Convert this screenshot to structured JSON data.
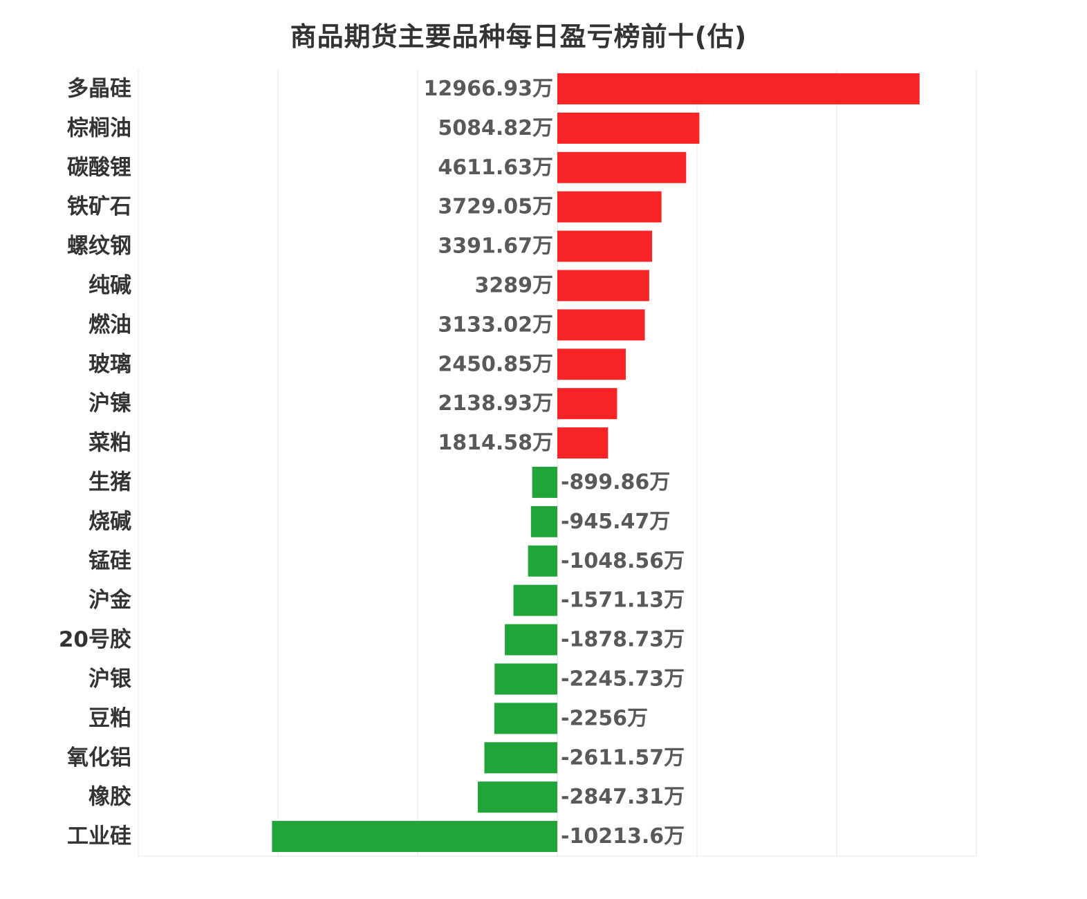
{
  "chart_data": {
    "type": "bar",
    "orientation": "horizontal",
    "title": "商品期货主要品种每日盈亏榜前十(估)",
    "unit": "万",
    "categories": [
      "多晶硅",
      "棕榈油",
      "碳酸锂",
      "铁矿石",
      "螺纹钢",
      "纯碱",
      "燃油",
      "玻璃",
      "沪镍",
      "菜粕",
      "生猪",
      "烧碱",
      "锰硅",
      "沪金",
      "20号胶",
      "沪银",
      "豆粕",
      "氧化铝",
      "橡胶",
      "工业硅"
    ],
    "values": [
      12966.93,
      5084.82,
      4611.63,
      3729.05,
      3391.67,
      3289,
      3133.02,
      2450.85,
      2138.93,
      1814.58,
      -899.86,
      -945.47,
      -1048.56,
      -1571.13,
      -1878.73,
      -2245.73,
      -2256,
      -2611.57,
      -2847.31,
      -10213.6
    ],
    "value_labels": [
      "12966.93万",
      "5084.82万",
      "4611.63万",
      "3729.05万",
      "3391.67万",
      "3289万",
      "3133.02万",
      "2450.85万",
      "2138.93万",
      "1814.58万",
      "-899.86万",
      "-945.47万",
      "-1048.56万",
      "-1571.13万",
      "-1878.73万",
      "-2245.73万",
      "-2256万",
      "-2611.57万",
      "-2847.31万",
      "-10213.6万"
    ],
    "xlim": [
      -15000,
      15000
    ],
    "grid": true,
    "colors": {
      "positive": "#f92426",
      "negative": "#21a53b"
    }
  }
}
